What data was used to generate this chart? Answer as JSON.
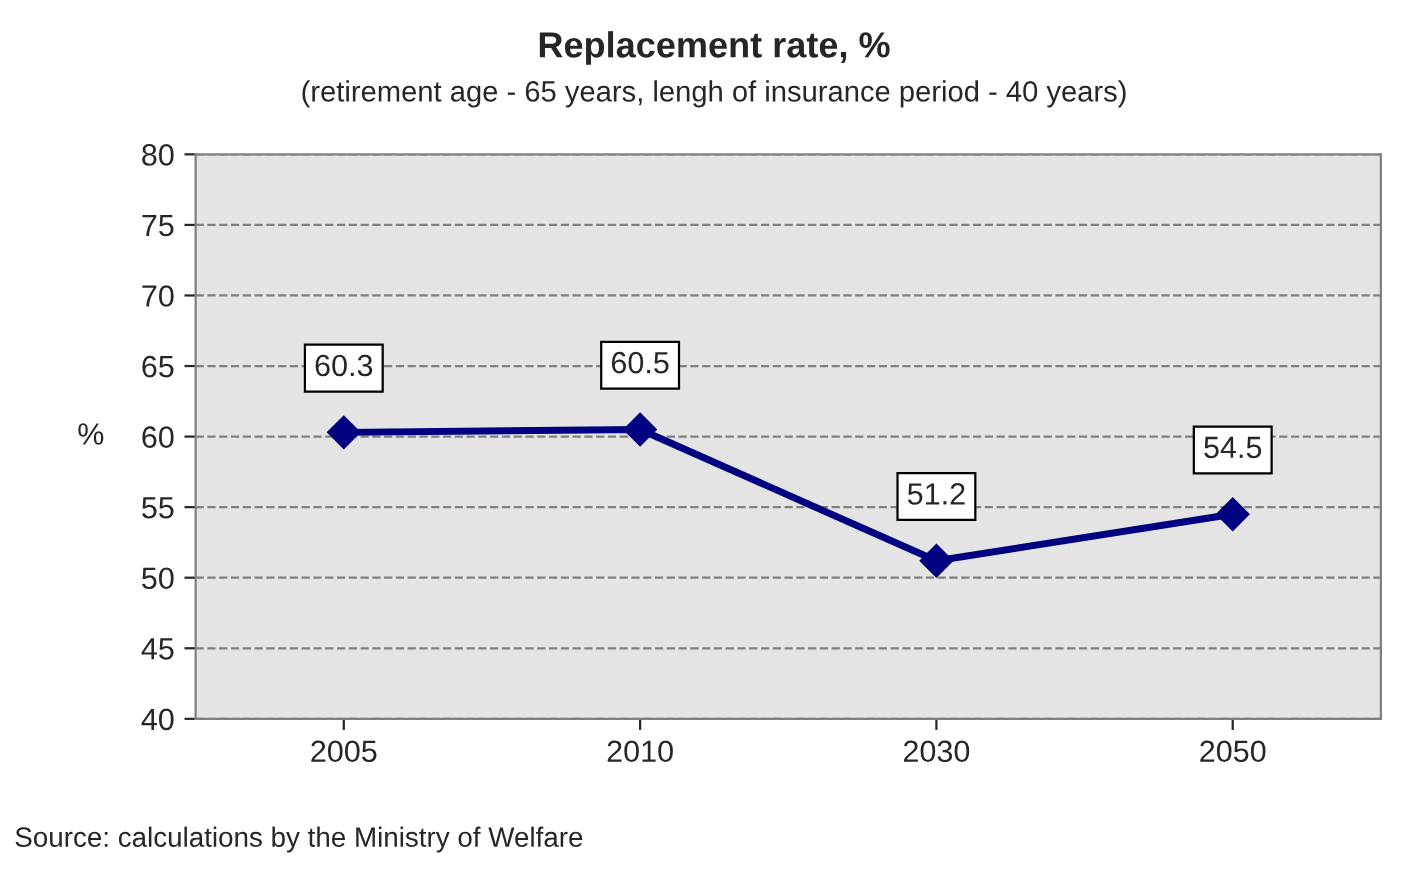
{
  "chart_data": {
    "type": "line",
    "title": "Replacement rate, %",
    "subtitle": "(retirement age - 65 years, lengh of insurance period - 40 years)",
    "ylabel": "%",
    "categories": [
      "2005",
      "2010",
      "2030",
      "2050"
    ],
    "series": [
      {
        "color": "#000080",
        "values": [
          60.3,
          60.5,
          51.2,
          54.5
        ]
      }
    ],
    "ylim": [
      40,
      80
    ],
    "yticks": [
      40,
      45,
      50,
      55,
      60,
      65,
      70,
      75,
      80
    ],
    "grid": "y",
    "marker": "diamond",
    "line_style": "solid",
    "data_labels": true,
    "legend": false,
    "annotations": [
      "Source: calculations by the Ministry of Welfare"
    ]
  }
}
